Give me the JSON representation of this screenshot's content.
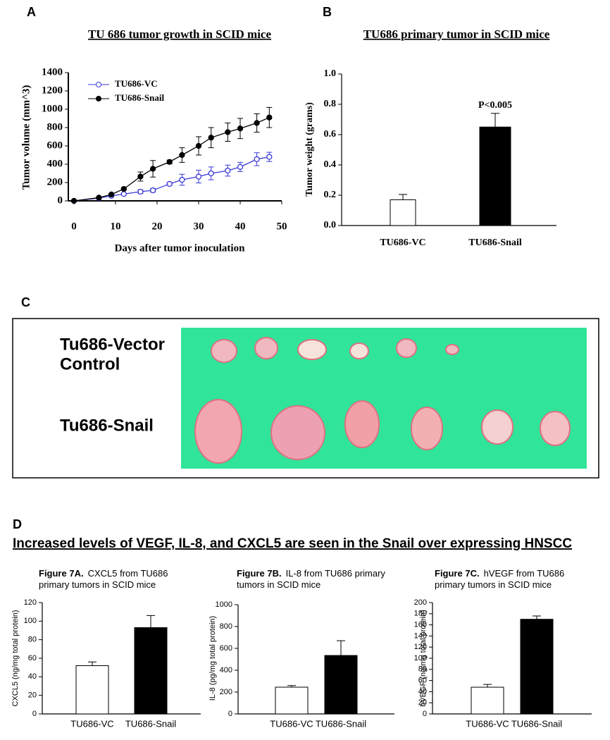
{
  "figure": {
    "panels": [
      "A",
      "B",
      "C",
      "D"
    ],
    "photo_labels": [
      "Tu686-Vector",
      "Control",
      "Tu686-Snail"
    ],
    "heading": "Increased levels of VEGF, IL-8, and CXCL5 are seen in the Snail over expressing HNSCC"
  },
  "chart_data": [
    {
      "type": "line",
      "title": "TU 686 tumor growth in SCID mice",
      "x_label": "Days after tumor inoculation",
      "y_label": "Tumor volume (mm^3)",
      "x": [
        0,
        6,
        9,
        12,
        16,
        19,
        23,
        26,
        30,
        33,
        37,
        40,
        44,
        47
      ],
      "series": [
        {
          "name": "TU686-VC",
          "color": "#3838d8",
          "marker": "open",
          "values": [
            0,
            30,
            55,
            75,
            100,
            115,
            185,
            230,
            265,
            300,
            330,
            370,
            455,
            480
          ],
          "errors": [
            0,
            5,
            10,
            10,
            20,
            20,
            15,
            60,
            70,
            70,
            60,
            50,
            70,
            50
          ]
        },
        {
          "name": "TU686-Snail",
          "color": "#000000",
          "marker": "filled",
          "values": [
            0,
            35,
            70,
            130,
            265,
            350,
            425,
            500,
            600,
            690,
            750,
            790,
            850,
            910
          ],
          "errors": [
            0,
            5,
            10,
            15,
            50,
            90,
            20,
            80,
            100,
            110,
            100,
            110,
            100,
            110
          ]
        }
      ],
      "xlim": [
        0,
        50
      ],
      "xticks": [
        0,
        10,
        20,
        30,
        40,
        50
      ],
      "ylim": [
        0,
        1400
      ],
      "yticks": [
        0,
        200,
        400,
        600,
        800,
        1000,
        1200,
        1400
      ],
      "legend": "upper left",
      "grid": false
    },
    {
      "type": "bar",
      "title": "TU686 primary tumor in SCID mice",
      "y_label": "Tumor weight (grams)",
      "annotation": "P<0.005",
      "categories": [
        "TU686-VC",
        "TU686-Snail"
      ],
      "values": [
        0.17,
        0.65
      ],
      "errors": [
        0.035,
        0.09
      ],
      "colors": [
        "#ffffff",
        "#000000"
      ],
      "ylim": [
        0,
        1.0
      ],
      "yticks": [
        {
          "value": 0,
          "label": "0.0"
        },
        0.2,
        0.4,
        0.6,
        0.8,
        {
          "value": 1.0,
          "label": "1.0"
        }
      ],
      "grid": false
    },
    {
      "type": "bar",
      "title_label": "Figure 7A.",
      "title": "CXCL5 from TU686 primary tumors in SCID mice",
      "y_label": "CXCL5 (ng/mg total protein)",
      "categories": [
        "TU686-VC",
        "TU686-Snail"
      ],
      "values": [
        52,
        93
      ],
      "errors": [
        4,
        13
      ],
      "colors": [
        "#ffffff",
        "#000000"
      ],
      "ylim": [
        0,
        120
      ],
      "yticks": [
        0,
        20,
        40,
        60,
        80,
        100,
        120
      ],
      "grid": false
    },
    {
      "type": "bar",
      "title_label": "Figure 7B.",
      "title": "IL-8 from TU686 primary tumors in SCID mice",
      "y_label": "IL-8 (pg/mg total protein)",
      "categories": [
        "TU686-VC",
        "TU686-Snail"
      ],
      "values": [
        245,
        535
      ],
      "errors": [
        15,
        135
      ],
      "colors": [
        "#ffffff",
        "#000000"
      ],
      "ylim": [
        0,
        1000
      ],
      "yticks": [
        0,
        200,
        400,
        600,
        800,
        1000
      ],
      "grid": false
    },
    {
      "type": "bar",
      "title_label": "Figure 7C.",
      "title": "hVEGF from TU686 primary tumors in SCID mice",
      "y_label": "hVEGF (ng/mg total protein)",
      "categories": [
        "TU686-VC",
        "TU686-Snail"
      ],
      "values": [
        48,
        170
      ],
      "errors": [
        5,
        6
      ],
      "colors": [
        "#ffffff",
        "#000000"
      ],
      "ylim": [
        0,
        200
      ],
      "yticks": [
        0,
        20,
        40,
        60,
        80,
        100,
        120,
        140,
        160,
        180,
        200
      ],
      "grid": false
    }
  ]
}
